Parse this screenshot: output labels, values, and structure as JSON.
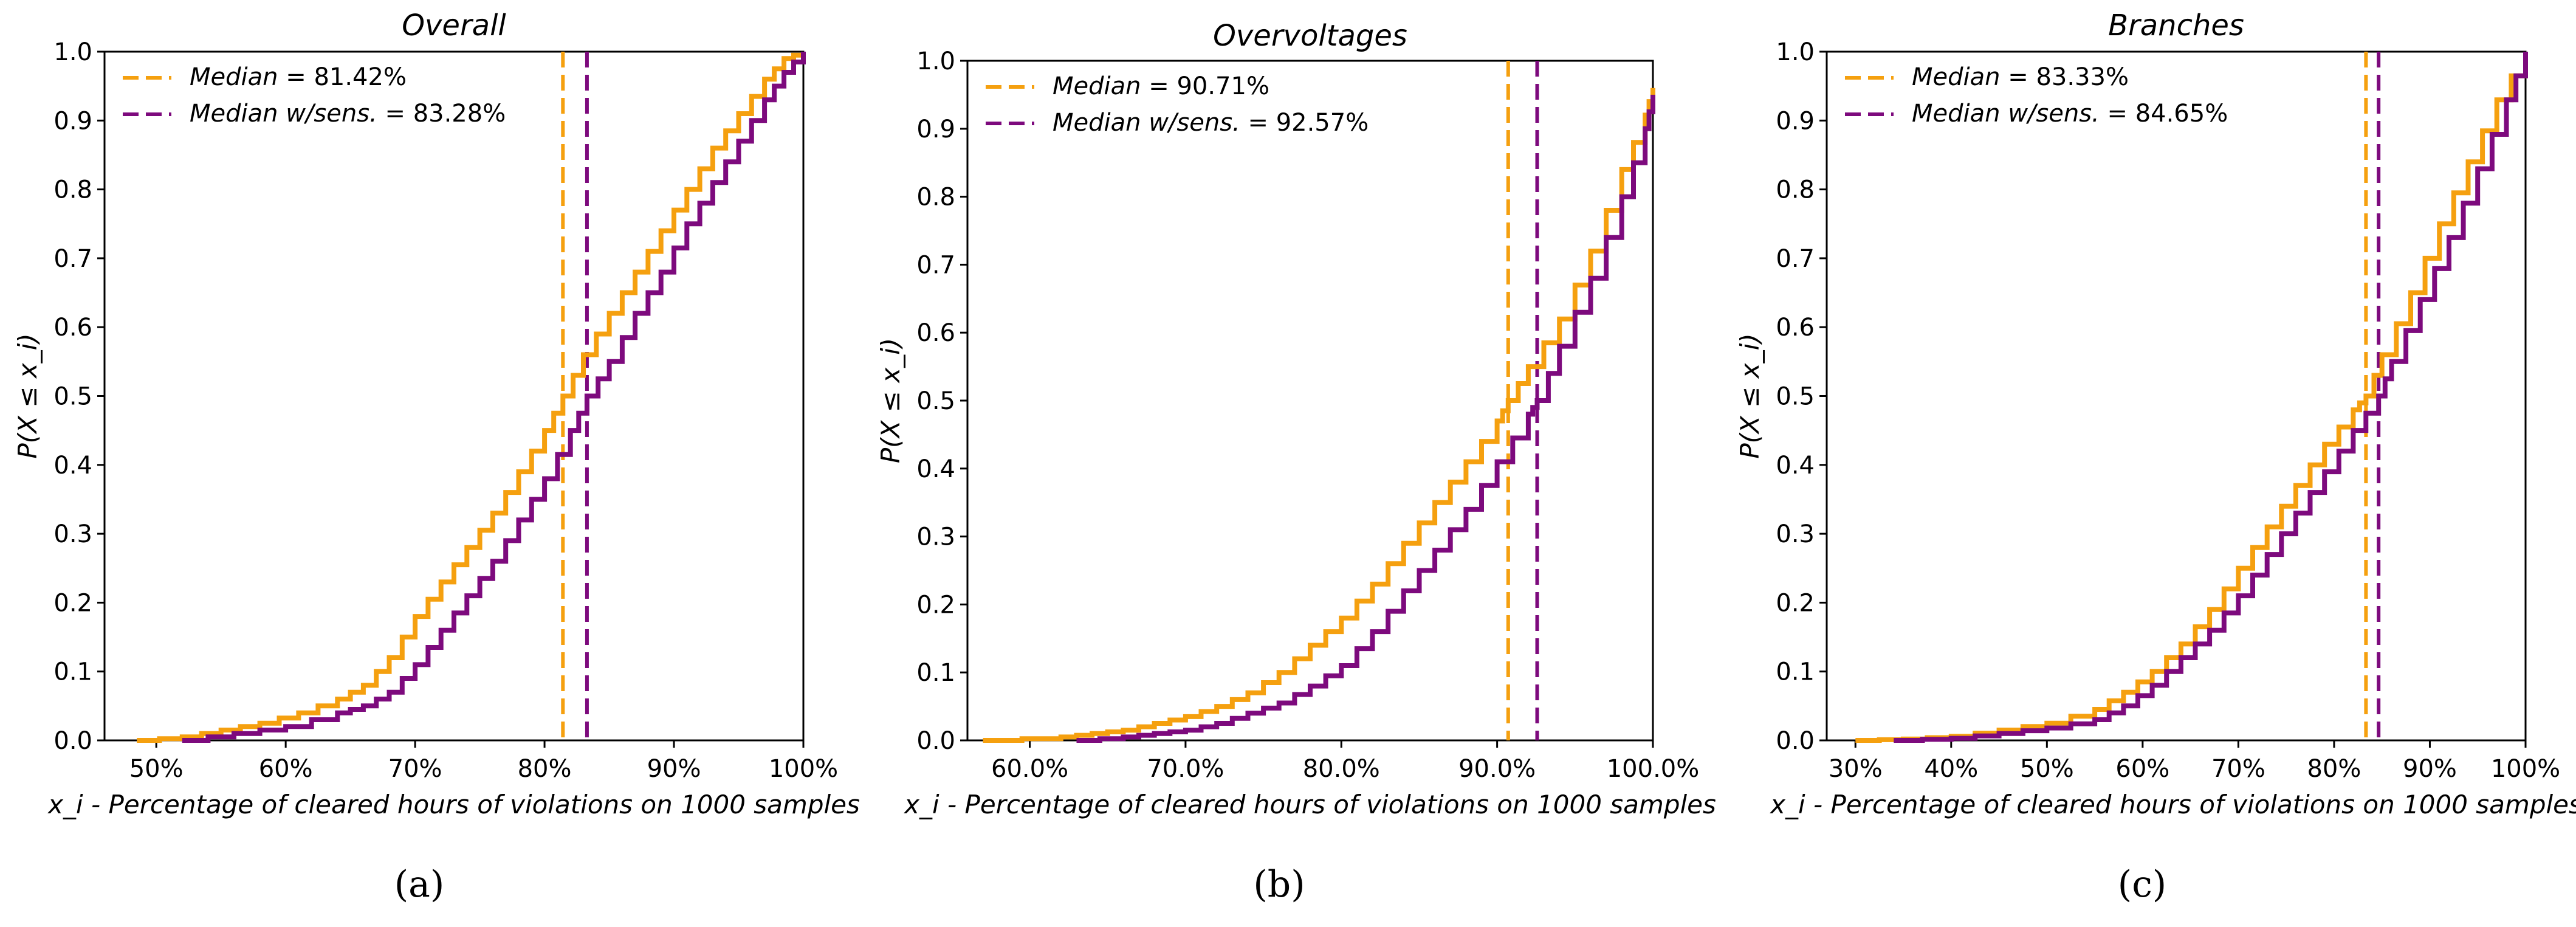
{
  "colors": {
    "orange": "#f5a00f",
    "purple": "#7d0a7d"
  },
  "chart_data": [
    {
      "type": "line",
      "subfig": "(a)",
      "title": "Overall",
      "xlabel": "x_i - Percentage of cleared hours of violations on 1000 samples",
      "ylabel": "P(X ≤ x_i)",
      "xlim": [
        46,
        100
      ],
      "ylim": [
        0,
        1
      ],
      "xticks": [
        50,
        60,
        70,
        80,
        90,
        100
      ],
      "xtick_labels": [
        "50%",
        "60%",
        "70%",
        "80%",
        "90%",
        "100%"
      ],
      "yticks": [
        0,
        0.1,
        0.2,
        0.3,
        0.4,
        0.5,
        0.6,
        0.7,
        0.8,
        0.9,
        1.0
      ],
      "ytick_labels": [
        "0.0",
        "0.1",
        "0.2",
        "0.3",
        "0.4",
        "0.5",
        "0.6",
        "0.7",
        "0.8",
        "0.9",
        "1.0"
      ],
      "legend_position": "top-left",
      "series": [
        {
          "color": "orange",
          "step": true,
          "x": [
            48.5,
            52,
            55,
            58,
            61,
            64,
            66,
            68,
            70,
            72,
            74,
            76,
            78,
            80,
            81.42,
            83,
            85,
            87,
            89,
            91,
            93,
            95,
            97,
            98.5,
            100
          ],
          "y": [
            0,
            0.005,
            0.015,
            0.025,
            0.04,
            0.06,
            0.08,
            0.12,
            0.18,
            0.23,
            0.28,
            0.33,
            0.39,
            0.45,
            0.5,
            0.56,
            0.62,
            0.68,
            0.74,
            0.8,
            0.86,
            0.91,
            0.96,
            0.99,
            1.0
          ]
        },
        {
          "color": "purple",
          "step": true,
          "x": [
            52,
            56,
            60,
            64,
            66,
            68,
            70,
            72,
            74,
            76,
            78,
            80,
            82,
            83.28,
            85,
            87,
            89,
            91,
            93,
            95,
            97,
            98.5,
            100
          ],
          "y": [
            0,
            0.01,
            0.02,
            0.04,
            0.05,
            0.07,
            0.11,
            0.16,
            0.21,
            0.26,
            0.32,
            0.38,
            0.45,
            0.5,
            0.55,
            0.62,
            0.68,
            0.75,
            0.81,
            0.87,
            0.93,
            0.97,
            1.0
          ]
        }
      ],
      "vlines": [
        {
          "x": 81.42,
          "color": "orange"
        },
        {
          "x": 83.28,
          "color": "purple"
        }
      ],
      "legend": [
        {
          "label": "Median",
          "value": " = 81.42%",
          "color": "orange"
        },
        {
          "label": "Median w/sens.",
          "value": " = 83.28%",
          "color": "purple"
        }
      ]
    },
    {
      "type": "line",
      "subfig": "(b)",
      "title": "Overvoltages",
      "xlabel": "x_i - Percentage of cleared hours of violations on 1000 samples",
      "ylabel": "P(X ≤ x_i)",
      "xlim": [
        56,
        100
      ],
      "ylim": [
        0,
        1
      ],
      "xticks": [
        60,
        70,
        80,
        90,
        100
      ],
      "xtick_labels": [
        "60.0%",
        "70.0%",
        "80.0%",
        "90.0%",
        "100.0%"
      ],
      "yticks": [
        0,
        0.1,
        0.2,
        0.3,
        0.4,
        0.5,
        0.6,
        0.7,
        0.8,
        0.9,
        1.0
      ],
      "ytick_labels": [
        "0.0",
        "0.1",
        "0.2",
        "0.3",
        "0.4",
        "0.5",
        "0.6",
        "0.7",
        "0.8",
        "0.9",
        "1.0"
      ],
      "legend_position": "top-left",
      "series": [
        {
          "color": "orange",
          "step": true,
          "x": [
            57,
            62,
            64,
            66,
            68,
            70,
            72,
            74,
            76,
            78,
            80,
            82,
            84,
            86,
            88,
            90,
            90.71,
            92,
            94,
            96,
            98,
            99.5,
            100
          ],
          "y": [
            0,
            0.005,
            0.01,
            0.015,
            0.025,
            0.035,
            0.05,
            0.07,
            0.1,
            0.14,
            0.18,
            0.23,
            0.29,
            0.35,
            0.41,
            0.47,
            0.5,
            0.55,
            0.62,
            0.72,
            0.84,
            0.92,
            0.96
          ]
        },
        {
          "color": "purple",
          "step": true,
          "x": [
            63,
            66,
            68,
            70,
            72,
            74,
            76,
            78,
            80,
            82,
            84,
            86,
            88,
            90,
            92,
            92.57,
            94,
            96,
            98,
            99.5,
            100
          ],
          "y": [
            0,
            0.005,
            0.01,
            0.015,
            0.025,
            0.04,
            0.055,
            0.08,
            0.11,
            0.16,
            0.22,
            0.28,
            0.34,
            0.41,
            0.48,
            0.5,
            0.58,
            0.68,
            0.8,
            0.9,
            0.95
          ]
        }
      ],
      "vlines": [
        {
          "x": 90.71,
          "color": "orange"
        },
        {
          "x": 92.57,
          "color": "purple"
        }
      ],
      "legend": [
        {
          "label": "Median",
          "value": " = 90.71%",
          "color": "orange"
        },
        {
          "label": "Median w/sens.",
          "value": " = 92.57%",
          "color": "purple"
        }
      ]
    },
    {
      "type": "line",
      "subfig": "(c)",
      "title": "Branches",
      "xlabel": "x_i - Percentage of cleared hours of violations on 1000 samples",
      "ylabel": "P(X ≤ x_i)",
      "xlim": [
        27,
        100
      ],
      "ylim": [
        0,
        1
      ],
      "xticks": [
        30,
        40,
        50,
        60,
        70,
        80,
        90,
        100
      ],
      "xtick_labels": [
        "30%",
        "40%",
        "50%",
        "60%",
        "70%",
        "80%",
        "90%",
        "100%"
      ],
      "yticks": [
        0,
        0.1,
        0.2,
        0.3,
        0.4,
        0.5,
        0.6,
        0.7,
        0.8,
        0.9,
        1.0
      ],
      "ytick_labels": [
        "0.0",
        "0.1",
        "0.2",
        "0.3",
        "0.4",
        "0.5",
        "0.6",
        "0.7",
        "0.8",
        "0.9",
        "1.0"
      ],
      "legend_position": "top-left",
      "series": [
        {
          "color": "orange",
          "step": true,
          "x": [
            30,
            35,
            40,
            45,
            50,
            55,
            58,
            61,
            64,
            67,
            70,
            73,
            76,
            79,
            82,
            83.33,
            85,
            88,
            91,
            94,
            97,
            100
          ],
          "y": [
            0,
            0.002,
            0.006,
            0.015,
            0.025,
            0.045,
            0.07,
            0.1,
            0.14,
            0.19,
            0.25,
            0.31,
            0.37,
            0.43,
            0.48,
            0.5,
            0.56,
            0.65,
            0.75,
            0.84,
            0.93,
            1.0
          ]
        },
        {
          "color": "purple",
          "step": true,
          "x": [
            34,
            40,
            45,
            50,
            55,
            58,
            61,
            64,
            67,
            70,
            73,
            76,
            79,
            82,
            84.65,
            86,
            89,
            92,
            95,
            98,
            100
          ],
          "y": [
            0,
            0.003,
            0.01,
            0.018,
            0.03,
            0.05,
            0.08,
            0.12,
            0.16,
            0.21,
            0.27,
            0.33,
            0.39,
            0.45,
            0.5,
            0.55,
            0.64,
            0.73,
            0.83,
            0.93,
            1.0
          ]
        }
      ],
      "vlines": [
        {
          "x": 83.33,
          "color": "orange"
        },
        {
          "x": 84.65,
          "color": "purple"
        }
      ],
      "legend": [
        {
          "label": "Median",
          "value": " = 83.33%",
          "color": "orange"
        },
        {
          "label": "Median w/sens.",
          "value": " = 84.65%",
          "color": "purple"
        }
      ]
    }
  ]
}
